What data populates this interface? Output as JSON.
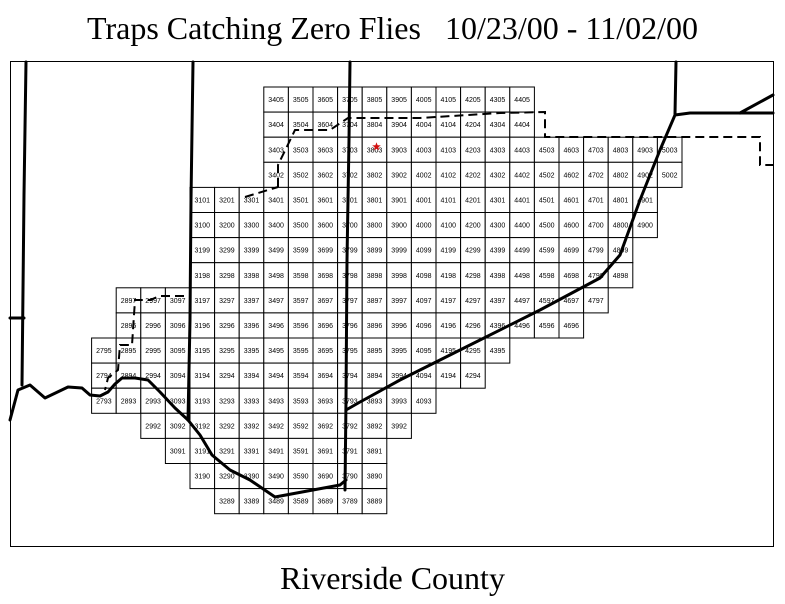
{
  "title": "Traps Catching Zero Flies   10/23/00 - 11/02/00",
  "footer": "Riverside County",
  "colors": {
    "marker": "#d01010",
    "lines": "#000000",
    "background": "#ffffff"
  },
  "marker": {
    "type": "star",
    "trap_cell": "3803"
  },
  "grid": {
    "rows": [
      {
        "row": 0,
        "start_col": 3,
        "traps": [
          "3405",
          "3505",
          "3605",
          "3705",
          "3805",
          "3905",
          "4005",
          "4105",
          "4205",
          "4305",
          "4405"
        ]
      },
      {
        "row": 1,
        "start_col": 3,
        "traps": [
          "3404",
          "3504",
          "3604",
          "3704",
          "3804",
          "3904",
          "4004",
          "4104",
          "4204",
          "4304",
          "4404"
        ]
      },
      {
        "row": 2,
        "start_col": 3,
        "traps": [
          "3403",
          "3503",
          "3603",
          "3703",
          "3803",
          "3903",
          "4003",
          "4103",
          "4203",
          "4303",
          "4403",
          "4503",
          "4603",
          "4703",
          "4803",
          "4903",
          "5003"
        ]
      },
      {
        "row": 3,
        "start_col": 3,
        "traps": [
          "3402",
          "3502",
          "3602",
          "3702",
          "3802",
          "3902",
          "4002",
          "4102",
          "4202",
          "4302",
          "4402",
          "4502",
          "4602",
          "4702",
          "4802",
          "4902",
          "5002"
        ]
      },
      {
        "row": 4,
        "start_col": 0,
        "traps": [
          "3101",
          "3201",
          "3301",
          "3401",
          "3501",
          "3601",
          "3701",
          "3801",
          "3901",
          "4001",
          "4101",
          "4201",
          "4301",
          "4401",
          "4501",
          "4601",
          "4701",
          "4801",
          "4901"
        ]
      },
      {
        "row": 5,
        "start_col": 0,
        "traps": [
          "3100",
          "3200",
          "3300",
          "3400",
          "3500",
          "3600",
          "3700",
          "3800",
          "3900",
          "4000",
          "4100",
          "4200",
          "4300",
          "4400",
          "4500",
          "4600",
          "4700",
          "4800",
          "4900"
        ]
      },
      {
        "row": 6,
        "start_col": 0,
        "traps": [
          "3199",
          "3299",
          "3399",
          "3499",
          "3599",
          "3699",
          "3799",
          "3899",
          "3999",
          "4099",
          "4199",
          "4299",
          "4399",
          "4499",
          "4599",
          "4699",
          "4799",
          "4899"
        ]
      },
      {
        "row": 7,
        "start_col": 0,
        "traps": [
          "3198",
          "3298",
          "3398",
          "3498",
          "3598",
          "3698",
          "3798",
          "3898",
          "3998",
          "4098",
          "4198",
          "4298",
          "4398",
          "4498",
          "4598",
          "4698",
          "4798",
          "4898"
        ]
      },
      {
        "row": 8,
        "start_col": -3,
        "traps": [
          "2897",
          "2997",
          "3097",
          "3197",
          "3297",
          "3397",
          "3497",
          "3597",
          "3697",
          "3797",
          "3897",
          "3997",
          "4097",
          "4197",
          "4297",
          "4397",
          "4497",
          "4597",
          "4697",
          "4797"
        ]
      },
      {
        "row": 9,
        "start_col": -3,
        "traps": [
          "2896",
          "2996",
          "3096",
          "3196",
          "3296",
          "3396",
          "3496",
          "3596",
          "3696",
          "3796",
          "3896",
          "3996",
          "4096",
          "4196",
          "4296",
          "4396",
          "4496",
          "4596",
          "4696"
        ]
      },
      {
        "row": 10,
        "start_col": -4,
        "traps": [
          "2795",
          "2895",
          "2995",
          "3095",
          "3195",
          "3295",
          "3395",
          "3495",
          "3595",
          "3695",
          "3795",
          "3895",
          "3995",
          "4095",
          "4195",
          "4295",
          "4395"
        ]
      },
      {
        "row": 11,
        "start_col": -4,
        "traps": [
          "2794",
          "2894",
          "2994",
          "3094",
          "3194",
          "3294",
          "3394",
          "3494",
          "3594",
          "3694",
          "3794",
          "3894",
          "3994",
          "4094",
          "4194",
          "4294"
        ]
      },
      {
        "row": 12,
        "start_col": -4,
        "traps": [
          "2793",
          "2893",
          "2993",
          "3093",
          "3193",
          "3293",
          "3393",
          "3493",
          "3593",
          "3693",
          "3793",
          "3893",
          "3993",
          "4093"
        ]
      },
      {
        "row": 13,
        "start_col": -2,
        "traps": [
          "2992",
          "3092",
          "3192",
          "3292",
          "3392",
          "3492",
          "3592",
          "3692",
          "3792",
          "3892",
          "3992"
        ]
      },
      {
        "row": 14,
        "start_col": -1,
        "traps": [
          "3091",
          "3191",
          "3291",
          "3391",
          "3491",
          "3591",
          "3691",
          "3791",
          "3891"
        ]
      },
      {
        "row": 15,
        "start_col": 0,
        "traps": [
          "3190",
          "3290",
          "3390",
          "3490",
          "3590",
          "3690",
          "3790",
          "3890"
        ]
      },
      {
        "row": 16,
        "start_col": 1,
        "traps": [
          "3289",
          "3389",
          "3489",
          "3589",
          "3689",
          "3789",
          "3889"
        ]
      }
    ]
  }
}
